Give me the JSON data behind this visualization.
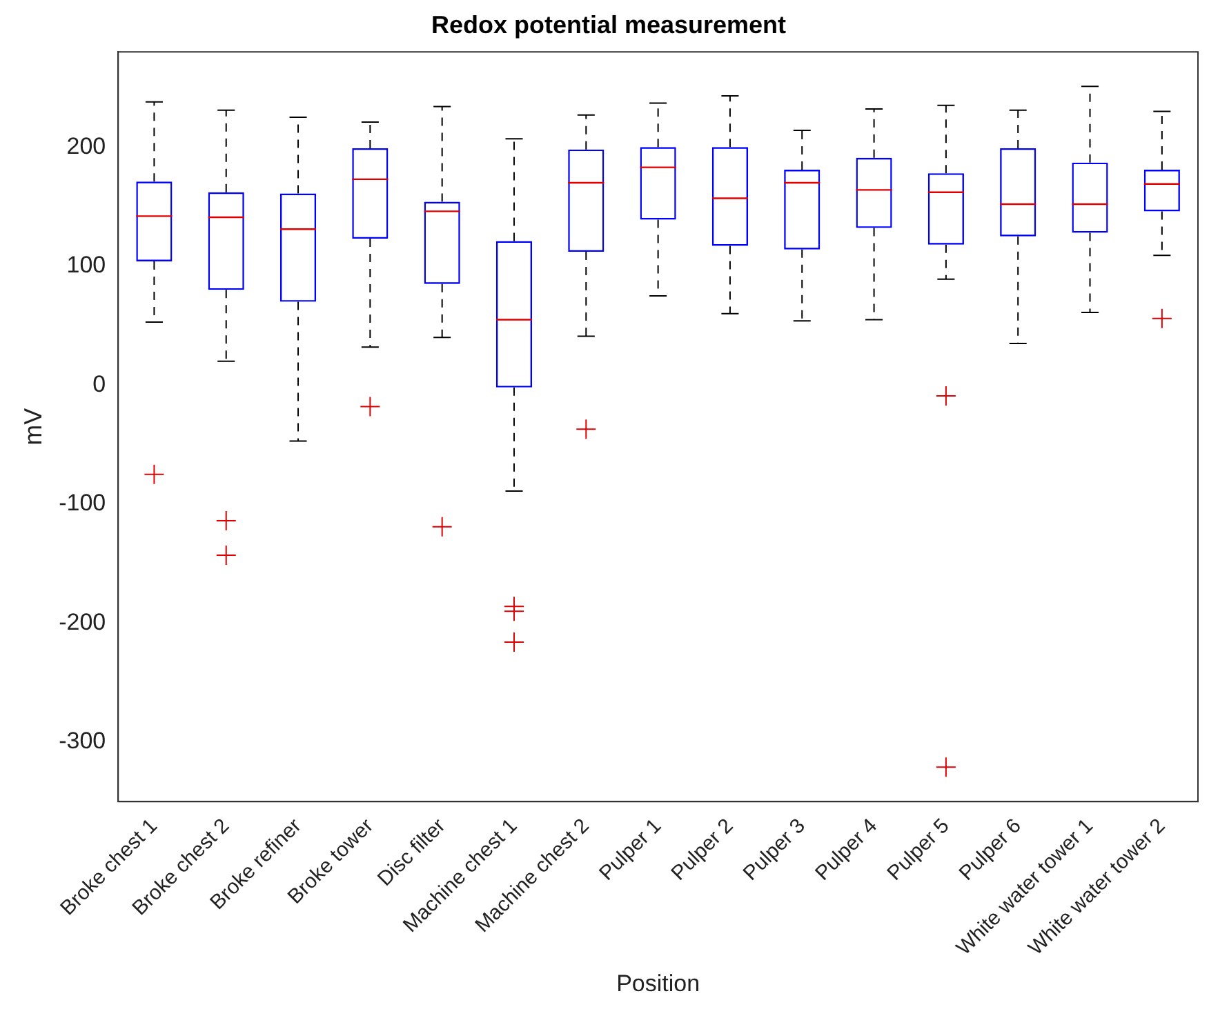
{
  "chart_data": {
    "type": "box",
    "title": "Redox potential measurement",
    "xlabel": "Position",
    "ylabel": "mV",
    "categories": [
      "Broke chest 1",
      "Broke chest 2",
      "Broke refiner",
      "Broke tower",
      "Disc filter",
      "Machine chest 1",
      "Machine chest 2",
      "Pulper 1",
      "Pulper 2",
      "Pulper 3",
      "Pulper 4",
      "Pulper 5",
      "Pulper 6",
      "White water tower 1",
      "White water tower 2"
    ],
    "color": "#0000ff",
    "marker": "cross",
    "boxes": [
      {
        "low": 53,
        "q1": 104,
        "median": 142,
        "q3": 171,
        "high": 238,
        "outliers": [
          -75
        ]
      },
      {
        "low": 20,
        "q1": 80,
        "median": 141,
        "q3": 162,
        "high": 231,
        "outliers": [
          -114,
          -143
        ]
      },
      {
        "low": -47,
        "q1": 70,
        "median": 131,
        "q3": 161,
        "high": 225
      },
      {
        "low": 32,
        "q1": 123,
        "median": 173,
        "q3": 199,
        "high": 221,
        "outliers": [
          -18
        ]
      },
      {
        "low": 40,
        "q1": 85,
        "median": 146,
        "q3": 154,
        "high": 234,
        "outliers": [
          -119
        ]
      },
      {
        "low": -89,
        "q1": -2,
        "median": 55,
        "q3": 121,
        "high": 207,
        "outliers": [
          -186,
          -190,
          -216
        ]
      },
      {
        "low": 41,
        "q1": 112,
        "median": 170,
        "q3": 198,
        "high": 227,
        "outliers": [
          -37
        ]
      },
      {
        "low": 75,
        "q1": 139,
        "median": 183,
        "q3": 200,
        "high": 237
      },
      {
        "low": 60,
        "q1": 117,
        "median": 157,
        "q3": 200,
        "high": 243
      },
      {
        "low": 54,
        "q1": 114,
        "median": 170,
        "q3": 181,
        "high": 214
      },
      {
        "low": 55,
        "q1": 132,
        "median": 164,
        "q3": 191,
        "high": 232
      },
      {
        "low": 89,
        "q1": 118,
        "median": 162,
        "q3": 178,
        "high": 235,
        "outliers": [
          -9,
          -321
        ]
      },
      {
        "low": 35,
        "q1": 125,
        "median": 152,
        "q3": 199,
        "high": 231
      },
      {
        "low": 61,
        "q1": 128,
        "median": 152,
        "q3": 187,
        "high": 251
      },
      {
        "low": 109,
        "q1": 146,
        "median": 169,
        "q3": 181,
        "high": 230,
        "outliers": [
          56
        ]
      }
    ],
    "ylim": [
      -350,
      280
    ],
    "yticks": [
      -300,
      -200,
      -100,
      0,
      100,
      200
    ],
    "grid": false
  }
}
